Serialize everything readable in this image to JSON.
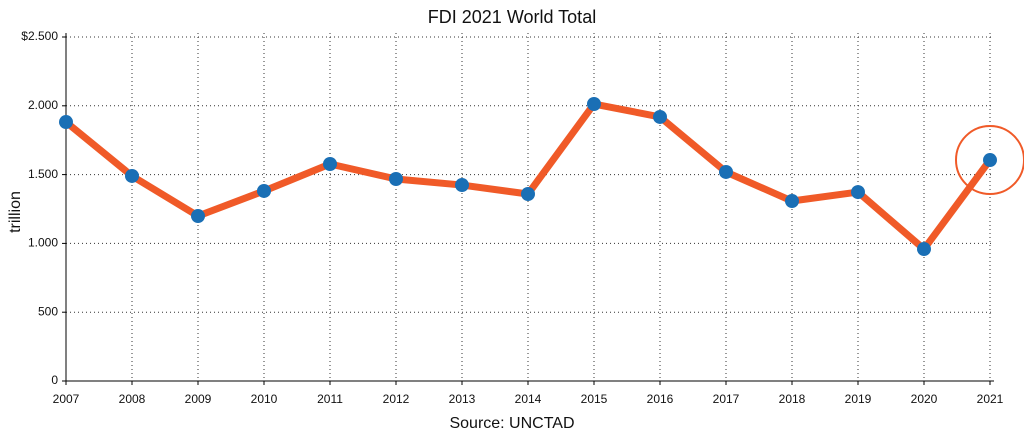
{
  "chart_data": {
    "type": "line",
    "title": "FDI 2021 World Total",
    "y_label": "trillion",
    "x_label": "Source: UNCTAD",
    "categories": [
      "2007",
      "2008",
      "2009",
      "2010",
      "2011",
      "2012",
      "2013",
      "2014",
      "2015",
      "2016",
      "2017",
      "2018",
      "2019",
      "2020",
      "2021"
    ],
    "series": [
      {
        "name": "FDI",
        "color": "#f05a28",
        "marker_color": "#1a6fb5",
        "values": [
          1882,
          1490,
          1199,
          1381,
          1577,
          1468,
          1424,
          1359,
          2013,
          1919,
          1519,
          1308,
          1373,
          959,
          1606
        ]
      }
    ],
    "ylim": [
      0,
      2500
    ],
    "yticks": [
      0,
      500,
      {
        "value": 1000,
        "label": "1.000"
      },
      {
        "value": 1500,
        "label": "1.500"
      },
      {
        "value": 2000,
        "label": "2.000"
      },
      {
        "value": 2500,
        "label": "$2.500"
      }
    ],
    "grid": true,
    "legend": false
  }
}
